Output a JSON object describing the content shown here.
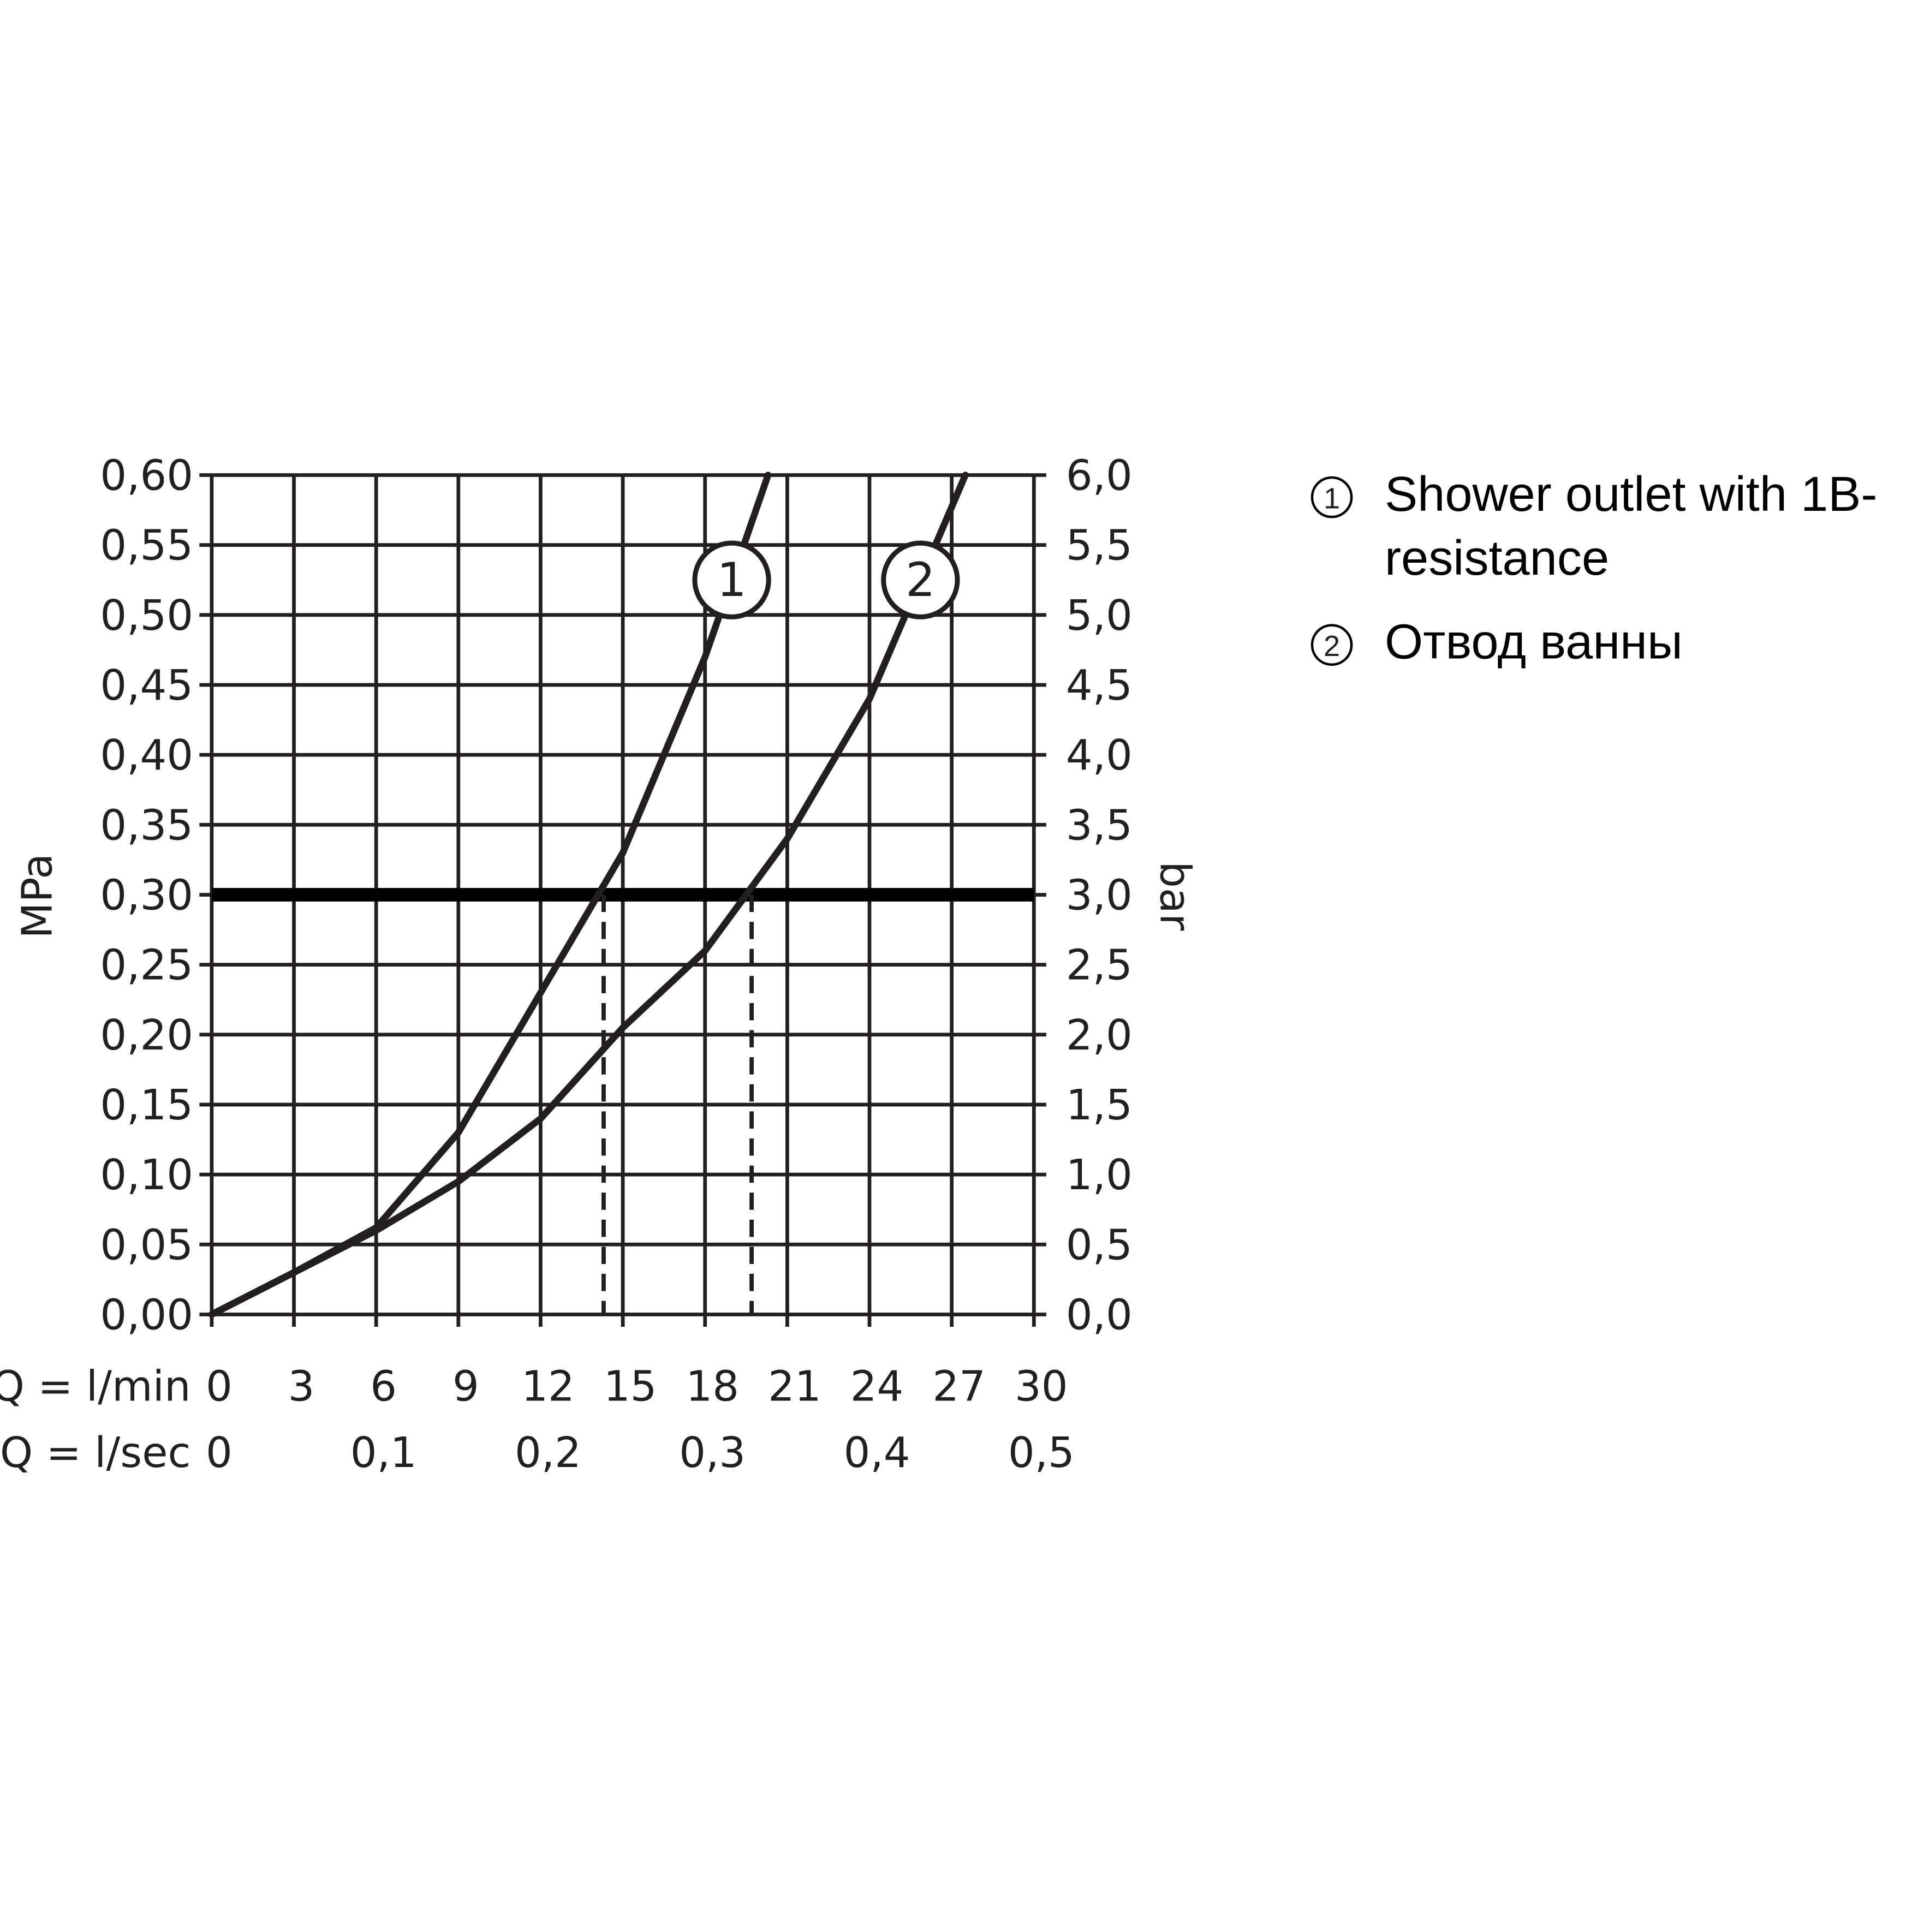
{
  "chart_data": {
    "type": "line",
    "x_label": "Q = l/min",
    "x2_label": "Q = l/sec",
    "y_label": "MPa",
    "y2_label": "bar",
    "xlim": [
      0,
      30
    ],
    "xticks": [
      0,
      3,
      6,
      9,
      12,
      15,
      18,
      21,
      24,
      27,
      30
    ],
    "x2lim": [
      0,
      0.5
    ],
    "x2ticks": [
      0,
      {
        "value": 0.1,
        "label": "0,1"
      },
      {
        "value": 0.2,
        "label": "0,2"
      },
      {
        "value": 0.3,
        "label": "0,3"
      },
      {
        "value": 0.4,
        "label": "0,4"
      },
      {
        "value": 0.5,
        "label": "0,5"
      }
    ],
    "ylim": [
      0,
      0.6
    ],
    "yticks": [
      {
        "value": 0,
        "label": "0,00"
      },
      {
        "value": 0.05,
        "label": "0,05"
      },
      {
        "value": 0.1,
        "label": "0,10"
      },
      {
        "value": 0.15,
        "label": "0,15"
      },
      {
        "value": 0.2,
        "label": "0,20"
      },
      {
        "value": 0.25,
        "label": "0,25"
      },
      {
        "value": 0.3,
        "label": "0,30"
      },
      {
        "value": 0.35,
        "label": "0,35"
      },
      {
        "value": 0.4,
        "label": "0,40"
      },
      {
        "value": 0.45,
        "label": "0,45"
      },
      {
        "value": 0.5,
        "label": "0,50"
      },
      {
        "value": 0.55,
        "label": "0,55"
      },
      {
        "value": 0.6,
        "label": "0,60"
      }
    ],
    "y2lim": [
      0,
      6
    ],
    "y2ticks": [
      {
        "value": 0,
        "label": "0,0"
      },
      {
        "value": 0.5,
        "label": "0,5"
      },
      {
        "value": 1,
        "label": "1,0"
      },
      {
        "value": 1.5,
        "label": "1,5"
      },
      {
        "value": 2,
        "label": "2,0"
      },
      {
        "value": 2.5,
        "label": "2,5"
      },
      {
        "value": 3,
        "label": "3,0"
      },
      {
        "value": 3.5,
        "label": "3,5"
      },
      {
        "value": 4,
        "label": "4,0"
      },
      {
        "value": 4.5,
        "label": "4,5"
      },
      {
        "value": 5,
        "label": "5,0"
      },
      {
        "value": 5.5,
        "label": "5,5"
      },
      {
        "value": 6,
        "label": "6,0"
      }
    ],
    "grid": true,
    "reference_y": 0.3,
    "reference_x": [
      14.3,
      19.7
    ],
    "series": [
      {
        "name": "Shower outlet with 1B-resistance",
        "label": "1",
        "color": "#231f20",
        "x": [
          0,
          3,
          6,
          9,
          12,
          15,
          18,
          20.3
        ],
        "values": [
          0,
          0.03,
          0.062,
          0.13,
          0.23,
          0.33,
          0.47,
          0.6
        ]
      },
      {
        "name": "Отвод ванны",
        "label": "2",
        "color": "#231f20",
        "x": [
          0,
          3,
          6,
          9,
          12,
          15,
          18,
          21,
          24,
          27.5
        ],
        "values": [
          0,
          0.03,
          0.06,
          0.095,
          0.14,
          0.205,
          0.26,
          0.34,
          0.44,
          0.6
        ]
      }
    ]
  }
}
